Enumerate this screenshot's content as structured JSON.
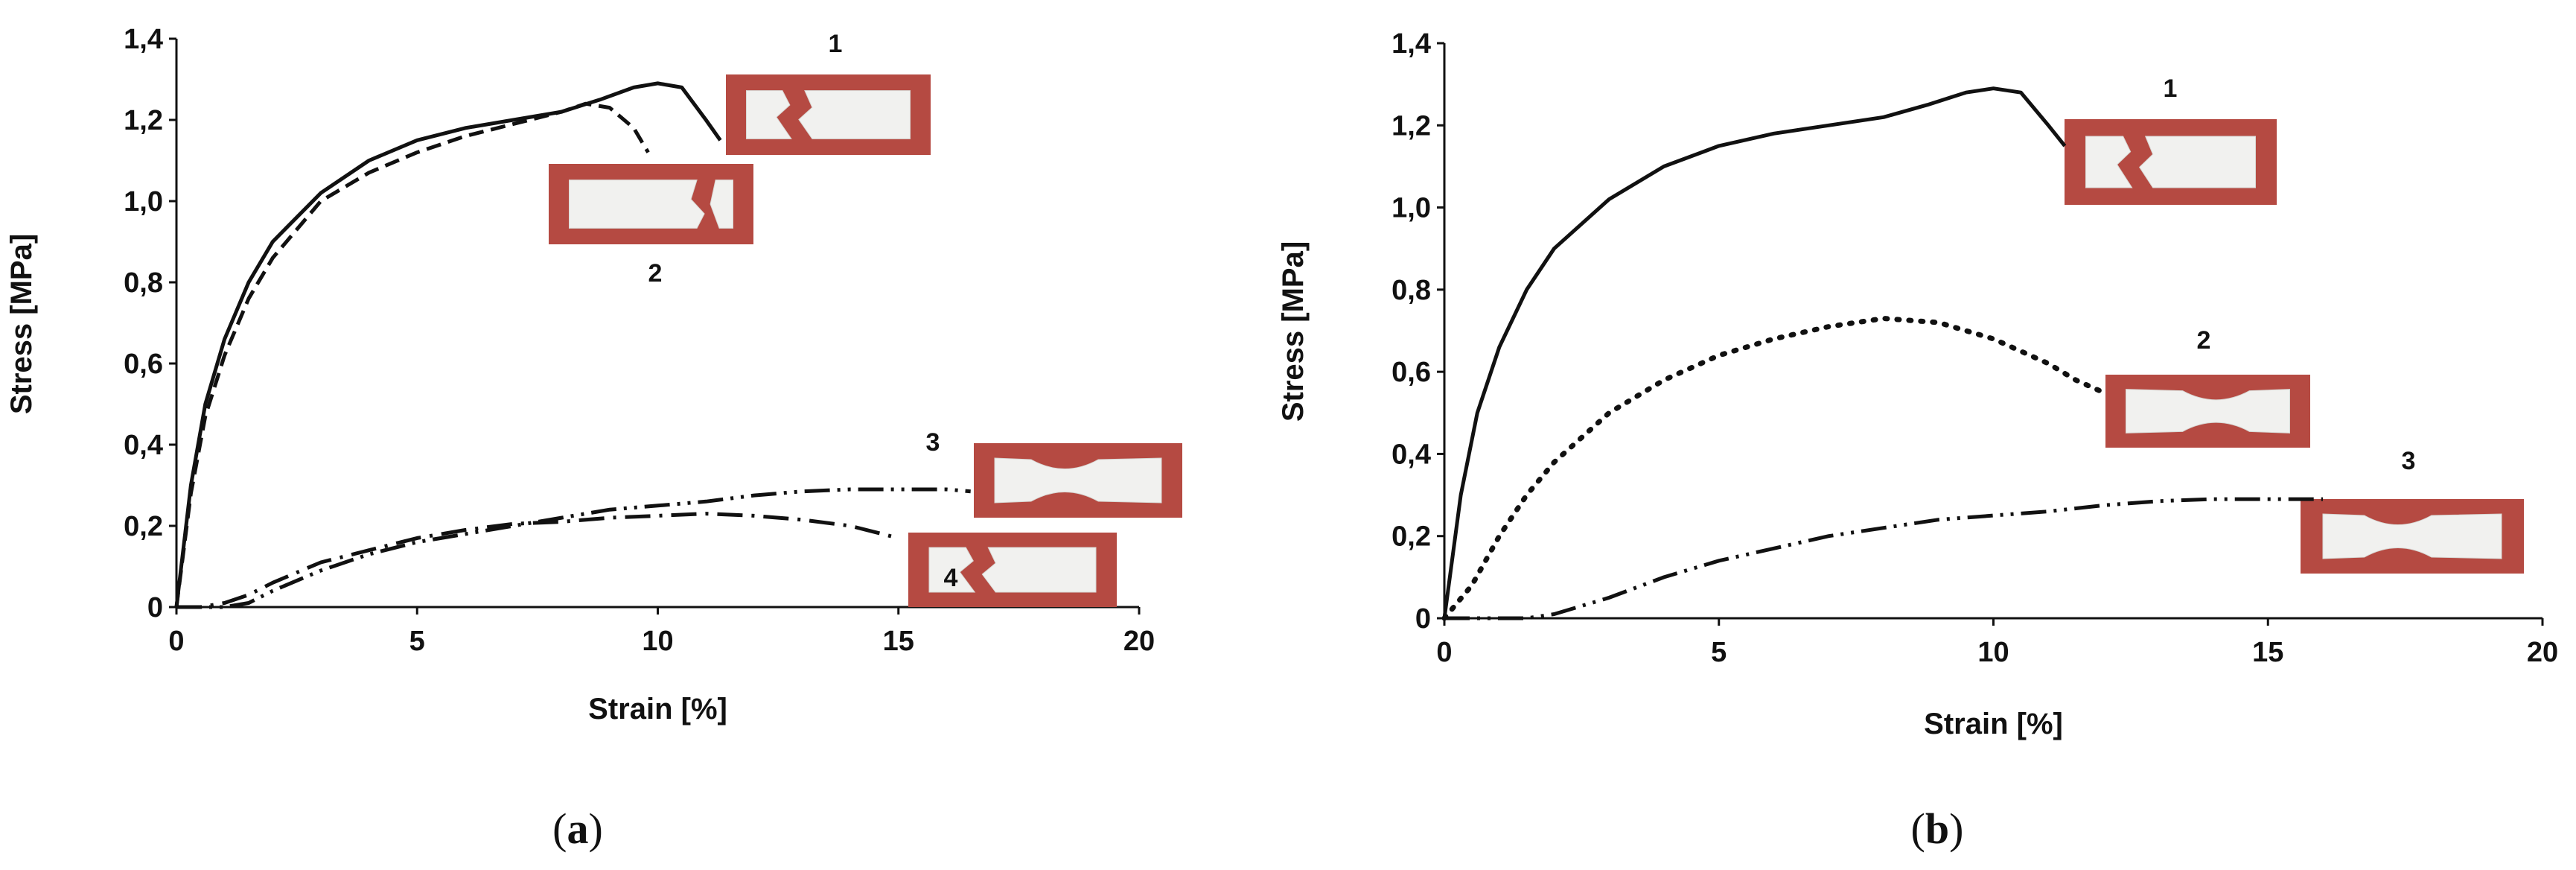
{
  "chart_data": [
    {
      "panel": "a",
      "type": "line",
      "caption_open": "(",
      "caption_letter": "a",
      "caption_close": ")",
      "xlabel": "Strain [%]",
      "ylabel": "Stress [MPa]",
      "xlim": [
        0,
        20
      ],
      "ylim": [
        0,
        1.4
      ],
      "x_ticks": [
        "0",
        "5",
        "10",
        "15",
        "20"
      ],
      "y_ticks": [
        "0",
        "0,2",
        "0,4",
        "0,6",
        "0,8",
        "1,0",
        "1,2",
        "1,4"
      ],
      "grid": false,
      "series": [
        {
          "name": "1",
          "style": "solid",
          "x": [
            0,
            0.3,
            0.6,
            1,
            1.5,
            2,
            3,
            4,
            5,
            6,
            7,
            8,
            8.8,
            9.5,
            10,
            10.5,
            11,
            11.3
          ],
          "y": [
            0,
            0.3,
            0.5,
            0.66,
            0.8,
            0.9,
            1.02,
            1.1,
            1.15,
            1.18,
            1.2,
            1.22,
            1.25,
            1.28,
            1.29,
            1.28,
            1.2,
            1.15
          ]
        },
        {
          "name": "2",
          "style": "dashed",
          "x": [
            0,
            0.3,
            0.6,
            1,
            1.5,
            2,
            3,
            4,
            5,
            6,
            7,
            8,
            8.5,
            9,
            9.5,
            9.8
          ],
          "y": [
            0,
            0.28,
            0.47,
            0.62,
            0.76,
            0.86,
            1.0,
            1.07,
            1.12,
            1.16,
            1.19,
            1.22,
            1.24,
            1.23,
            1.18,
            1.12
          ]
        },
        {
          "name": "3",
          "style": "dash-dot-dot",
          "x": [
            0,
            0.5,
            1,
            1.5,
            2,
            3,
            4,
            5,
            6,
            7,
            8,
            9,
            10,
            11,
            12,
            13,
            14,
            15,
            16,
            16.5
          ],
          "y": [
            0,
            0,
            0,
            0.01,
            0.04,
            0.09,
            0.13,
            0.16,
            0.18,
            0.2,
            0.22,
            0.24,
            0.25,
            0.26,
            0.275,
            0.285,
            0.29,
            0.29,
            0.29,
            0.285
          ]
        },
        {
          "name": "4",
          "style": "dash-dot",
          "x": [
            0,
            0.5,
            1,
            1.5,
            2,
            3,
            4,
            5,
            6,
            7,
            8,
            9,
            10,
            11,
            12,
            13,
            14,
            14.5,
            15
          ],
          "y": [
            0,
            0,
            0.01,
            0.03,
            0.06,
            0.11,
            0.14,
            0.17,
            0.19,
            0.205,
            0.21,
            0.22,
            0.225,
            0.23,
            0.225,
            0.215,
            0.2,
            0.185,
            0.17
          ]
        }
      ],
      "annotations": [
        "1",
        "2",
        "3",
        "4"
      ]
    },
    {
      "panel": "b",
      "type": "line",
      "caption_open": "(",
      "caption_letter": "b",
      "caption_close": ")",
      "xlabel": "Strain [%]",
      "ylabel": "Stress [MPa]",
      "xlim": [
        0,
        20
      ],
      "ylim": [
        0,
        1.4
      ],
      "x_ticks": [
        "0",
        "5",
        "10",
        "15",
        "20"
      ],
      "y_ticks": [
        "0",
        "0,2",
        "0,4",
        "0,6",
        "0,8",
        "1,0",
        "1,2",
        "1,4"
      ],
      "grid": false,
      "series": [
        {
          "name": "1",
          "style": "solid",
          "x": [
            0,
            0.3,
            0.6,
            1,
            1.5,
            2,
            3,
            4,
            5,
            6,
            7,
            8,
            8.8,
            9.5,
            10,
            10.5,
            11,
            11.3
          ],
          "y": [
            0,
            0.3,
            0.5,
            0.66,
            0.8,
            0.9,
            1.02,
            1.1,
            1.15,
            1.18,
            1.2,
            1.22,
            1.25,
            1.28,
            1.29,
            1.28,
            1.2,
            1.15
          ]
        },
        {
          "name": "2",
          "style": "dotted",
          "x": [
            0,
            0.5,
            1,
            1.5,
            2,
            3,
            4,
            5,
            6,
            7,
            8,
            9,
            10,
            11,
            11.5,
            12
          ],
          "y": [
            0,
            0.08,
            0.2,
            0.3,
            0.38,
            0.5,
            0.58,
            0.64,
            0.68,
            0.71,
            0.73,
            0.72,
            0.68,
            0.62,
            0.58,
            0.55
          ]
        },
        {
          "name": "3",
          "style": "dash-dot-dot",
          "x": [
            0,
            0.5,
            1,
            1.5,
            2,
            3,
            4,
            5,
            6,
            7,
            8,
            9,
            10,
            11,
            12,
            13,
            14,
            15,
            16
          ],
          "y": [
            0,
            0,
            0,
            0,
            0.01,
            0.05,
            0.1,
            0.14,
            0.17,
            0.2,
            0.22,
            0.24,
            0.25,
            0.26,
            0.275,
            0.285,
            0.29,
            0.29,
            0.29
          ]
        }
      ],
      "annotations": [
        "1",
        "2",
        "3"
      ]
    }
  ]
}
